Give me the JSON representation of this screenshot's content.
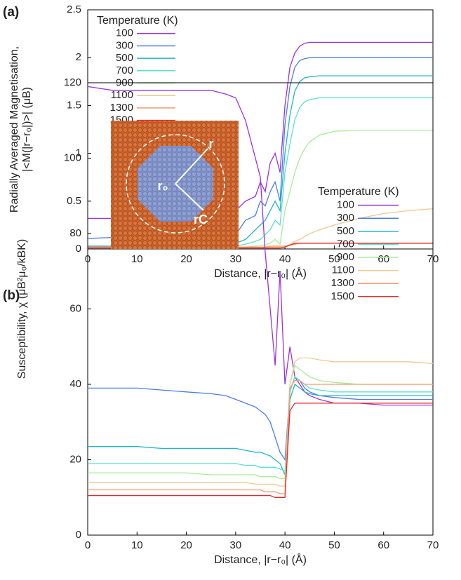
{
  "chart_data": [
    {
      "type": "line",
      "panel": "(a)",
      "xlabel": "Distance, |r−r₀| (Å)",
      "ylabel": [
        "Radially Averaged Magnetisation,",
        "|<M(|r−r₀|)>| (μB)"
      ],
      "legend_title": "Temperature (K)",
      "legend": "upper left",
      "xlim": [
        0,
        70
      ],
      "xticks": [
        0,
        10,
        20,
        30,
        40,
        50,
        60,
        70
      ],
      "ylim": [
        0,
        2.5
      ],
      "yticks": [
        0,
        0.5,
        1,
        1.5,
        2,
        2.5
      ],
      "x": [
        0,
        5,
        10,
        15,
        20,
        25,
        28,
        30,
        32,
        34,
        35,
        36,
        37,
        38,
        39,
        40,
        41,
        42,
        43,
        44,
        45,
        47,
        50,
        55,
        60,
        65,
        70
      ],
      "series": [
        {
          "name": "100",
          "color": "#9a32e0",
          "values": [
            0.32,
            0.32,
            0.32,
            0.32,
            0.33,
            0.33,
            0.35,
            0.4,
            0.5,
            0.55,
            0.7,
            0.6,
            0.9,
            1.0,
            0.8,
            1.5,
            1.9,
            2.05,
            2.12,
            2.15,
            2.16,
            2.16,
            2.16,
            2.16,
            2.16,
            2.16,
            2.16
          ]
        },
        {
          "name": "300",
          "color": "#4a7de8",
          "values": [
            0.11,
            0.12,
            0.12,
            0.12,
            0.12,
            0.11,
            0.12,
            0.15,
            0.3,
            0.35,
            0.5,
            0.45,
            0.6,
            0.7,
            0.5,
            1.3,
            1.7,
            1.9,
            1.97,
            1.99,
            2.0,
            2.0,
            2.0,
            2.0,
            2.0,
            2.0,
            2.0
          ]
        },
        {
          "name": "500",
          "color": "#20b5c8",
          "values": [
            0.03,
            0.03,
            0.03,
            0.03,
            0.04,
            0.04,
            0.05,
            0.06,
            0.1,
            0.2,
            0.25,
            0.3,
            0.4,
            0.5,
            0.4,
            1.0,
            1.4,
            1.65,
            1.75,
            1.79,
            1.8,
            1.81,
            1.81,
            1.81,
            1.81,
            1.81,
            1.81
          ]
        },
        {
          "name": "700",
          "color": "#5ee0c8",
          "values": [
            0.02,
            0.02,
            0.02,
            0.02,
            0.02,
            0.02,
            0.03,
            0.03,
            0.05,
            0.08,
            0.1,
            0.15,
            0.2,
            0.3,
            0.25,
            0.8,
            1.1,
            1.35,
            1.48,
            1.54,
            1.56,
            1.58,
            1.58,
            1.58,
            1.58,
            1.58,
            1.58
          ]
        },
        {
          "name": "900",
          "color": "#a8ec9a",
          "values": [
            0.02,
            0.02,
            0.02,
            0.02,
            0.02,
            0.02,
            0.02,
            0.02,
            0.02,
            0.03,
            0.04,
            0.04,
            0.06,
            0.1,
            0.05,
            0.4,
            0.6,
            0.8,
            0.95,
            1.05,
            1.12,
            1.19,
            1.23,
            1.24,
            1.24,
            1.24,
            1.24
          ]
        },
        {
          "name": "1100",
          "color": "#f0c890",
          "values": [
            0.02,
            0.02,
            0.02,
            0.02,
            0.02,
            0.02,
            0.02,
            0.02,
            0.02,
            0.02,
            0.02,
            0.02,
            0.02,
            0.02,
            0.02,
            0.02,
            0.05,
            0.08,
            0.1,
            0.13,
            0.16,
            0.2,
            0.25,
            0.32,
            0.37,
            0.4,
            0.42
          ]
        },
        {
          "name": "1300",
          "color": "#f59a70",
          "values": [
            0.02,
            0.02,
            0.02,
            0.02,
            0.02,
            0.02,
            0.02,
            0.02,
            0.02,
            0.02,
            0.02,
            0.02,
            0.03,
            0.03,
            0.03,
            0.03,
            0.04,
            0.05,
            0.06,
            0.06,
            0.06,
            0.06,
            0.06,
            0.06,
            0.06,
            0.06,
            0.06
          ]
        },
        {
          "name": "1500",
          "color": "#e82828",
          "values": [
            0.01,
            0.01,
            0.01,
            0.01,
            0.01,
            0.01,
            0.01,
            0.01,
            0.01,
            0.01,
            0.01,
            0.01,
            0.01,
            0.01,
            0.01,
            0.02,
            0.04,
            0.06,
            0.06,
            0.06,
            0.06,
            0.06,
            0.06,
            0.06,
            0.06,
            0.06,
            0.06
          ]
        }
      ]
    },
    {
      "type": "line",
      "panel": "(b)",
      "xlabel": "Distance, |r−r₀| (Å)",
      "ylabel": [
        "Susceptibility, χ (μB²μ₀/kBK)"
      ],
      "legend_title": "Temperature (K)",
      "legend": "upper right",
      "inset": {
        "labels": [
          "r",
          "r₀",
          "rC"
        ]
      },
      "xlim": [
        0,
        70
      ],
      "xticks": [
        0,
        10,
        20,
        30,
        40,
        50,
        60,
        70
      ],
      "ylim": [
        0,
        120
      ],
      "yticks": [
        0,
        20,
        40,
        60,
        80,
        100,
        120
      ],
      "x": [
        0,
        5,
        10,
        15,
        20,
        25,
        28,
        30,
        32,
        34,
        35,
        36,
        37,
        38,
        39,
        40,
        41,
        42,
        43,
        44,
        45,
        47,
        50,
        55,
        60,
        65,
        70
      ],
      "series": [
        {
          "name": "100",
          "color": "#9a32e0",
          "values": [
            119,
            118,
            118,
            118,
            118,
            118,
            117,
            116,
            110,
            100,
            95,
            75,
            60,
            45,
            70,
            40,
            50,
            42,
            40,
            38,
            37,
            36,
            35,
            35,
            34.5,
            34.5,
            34.5
          ]
        },
        {
          "name": "300",
          "color": "#4a7de8",
          "values": [
            39,
            39,
            39,
            38.5,
            38,
            37.5,
            37,
            36,
            35,
            34,
            33,
            32,
            30,
            26,
            22,
            20,
            38,
            42,
            41,
            39,
            38,
            37,
            36.5,
            36,
            36,
            36,
            36
          ]
        },
        {
          "name": "500",
          "color": "#20b5c8",
          "values": [
            23.5,
            23.5,
            23.5,
            23,
            23,
            23,
            23,
            23,
            22.5,
            22,
            22,
            21.5,
            21,
            20,
            19,
            16,
            36,
            40,
            39,
            38,
            37.5,
            37,
            37,
            37,
            37,
            37,
            37
          ]
        },
        {
          "name": "700",
          "color": "#5ee0c8",
          "values": [
            19,
            19,
            19,
            19,
            19,
            19,
            19,
            19,
            18.5,
            18.5,
            18,
            18,
            18,
            18,
            17.5,
            17,
            38,
            42,
            41,
            40,
            39,
            38.5,
            38,
            38,
            38,
            38,
            38
          ]
        },
        {
          "name": "900",
          "color": "#a8ec9a",
          "values": [
            16.5,
            16.5,
            16.5,
            16.5,
            16.5,
            16,
            16,
            16,
            16,
            16,
            15.5,
            15.5,
            15.5,
            15.5,
            15,
            15,
            40,
            45,
            44,
            43,
            42,
            41,
            40.5,
            40,
            40,
            40,
            40
          ]
        },
        {
          "name": "1100",
          "color": "#f0c890",
          "values": [
            14,
            14,
            14,
            14,
            14,
            14,
            14,
            14,
            14,
            13.5,
            13.5,
            13.5,
            13.5,
            13.5,
            13,
            13,
            40,
            46,
            47,
            47,
            47,
            46.5,
            46,
            46,
            46,
            46,
            45.5
          ]
        },
        {
          "name": "1300",
          "color": "#f59a70",
          "values": [
            12,
            12,
            12,
            12,
            12,
            12,
            12,
            12,
            12,
            12,
            12,
            11.5,
            11.5,
            11.5,
            11,
            11,
            39,
            41,
            41,
            40,
            40,
            40,
            40,
            40,
            40,
            40,
            40
          ]
        },
        {
          "name": "1500",
          "color": "#e82828",
          "values": [
            10.5,
            10.5,
            10.5,
            10.5,
            10.5,
            10.5,
            10.5,
            10.5,
            10.5,
            10.5,
            10.5,
            10.5,
            10.5,
            10,
            10,
            10,
            33,
            35,
            35,
            35,
            35,
            35,
            35,
            35,
            35,
            35,
            35
          ]
        }
      ]
    }
  ]
}
